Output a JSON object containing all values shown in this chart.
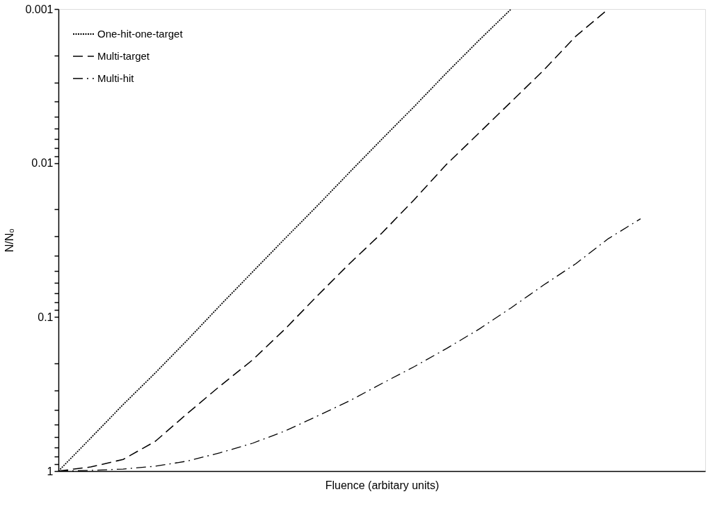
{
  "chart_data": {
    "type": "line",
    "xlabel": "Fluence (arbitary units)",
    "ylabel": "N/N₀",
    "categories": [
      null,
      null,
      null,
      null,
      null,
      null,
      null,
      null,
      null,
      null,
      null,
      null,
      null,
      null,
      null,
      null,
      null,
      null,
      null,
      null,
      null
    ],
    "series": [
      {
        "name": "One-hit-one-target",
        "color": "#000000",
        "line_style": "dotted",
        "values": [
          1,
          0.61,
          0.37,
          0.23,
          0.14,
          0.084,
          0.051,
          0.031,
          0.019,
          0.0115,
          0.007,
          0.0043,
          0.0026,
          0.0016,
          0.001,
          null,
          null,
          null,
          null,
          null,
          null
        ]
      },
      {
        "name": "Multi-target",
        "color": "#000000",
        "line_style": "dashed",
        "values": [
          1,
          0.94,
          0.84,
          0.64,
          0.42,
          0.28,
          0.19,
          0.12,
          0.073,
          0.045,
          0.0285,
          0.0173,
          0.0102,
          0.0064,
          0.004,
          0.0025,
          0.0015,
          0.001,
          null,
          null,
          null
        ]
      },
      {
        "name": "Multi-hit",
        "color": "#000000",
        "line_style": "dashdot",
        "values": [
          1,
          0.99,
          0.97,
          0.93,
          0.86,
          0.76,
          0.66,
          0.55,
          0.44,
          0.35,
          0.27,
          0.21,
          0.16,
          0.12,
          0.087,
          0.062,
          0.045,
          0.031,
          0.023,
          null,
          null
        ]
      }
    ],
    "log": "y",
    "ylim": [
      1,
      0.001
    ],
    "yticks": [
      {
        "value": 1,
        "label": "1"
      },
      {
        "value": 0.9,
        "label": null
      },
      {
        "value": 0.8,
        "label": null
      },
      {
        "value": 0.7,
        "label": null
      },
      {
        "value": 0.6,
        "label": null
      },
      {
        "value": 0.5,
        "label": null
      },
      {
        "value": 0.4,
        "label": null
      },
      {
        "value": 0.3,
        "label": null
      },
      {
        "value": 0.2,
        "label": null
      },
      {
        "value": 0.1,
        "label": "0.1"
      },
      {
        "value": 0.09,
        "label": null
      },
      {
        "value": 0.08,
        "label": null
      },
      {
        "value": 0.07,
        "label": null
      },
      {
        "value": 0.06,
        "label": null
      },
      {
        "value": 0.05,
        "label": null
      },
      {
        "value": 0.04,
        "label": null
      },
      {
        "value": 0.03,
        "label": null
      },
      {
        "value": 0.02,
        "label": null
      },
      {
        "value": 0.01,
        "label": "0.01"
      },
      {
        "value": 0.009,
        "label": null
      },
      {
        "value": 0.008,
        "label": null
      },
      {
        "value": 0.007,
        "label": null
      },
      {
        "value": 0.006,
        "label": null
      },
      {
        "value": 0.005,
        "label": null
      },
      {
        "value": 0.004,
        "label": null
      },
      {
        "value": 0.003,
        "label": null
      },
      {
        "value": 0.002,
        "label": null
      },
      {
        "value": 0.001,
        "label": "0.001"
      }
    ],
    "grid": false,
    "legend": "top left",
    "tick_labels": "y"
  }
}
